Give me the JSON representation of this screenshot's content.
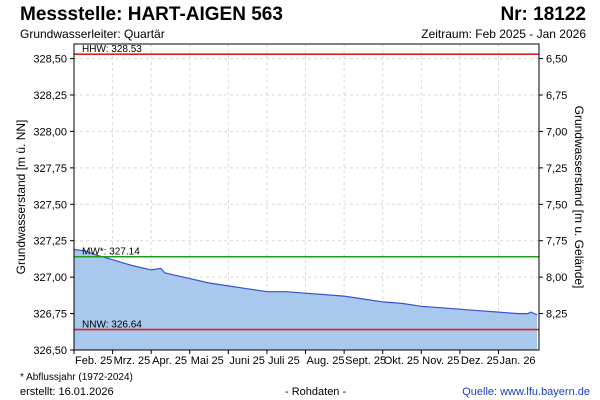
{
  "header": {
    "title": "Messstelle: HART-AIGEN 563",
    "number": "Nr: 18122",
    "aquifer": "Grundwasserleiter: Quartär",
    "period": "Zeitraum: Feb 2025 - Jan 2026"
  },
  "footer": {
    "footnote": "* Abflussjahr (1972-2024)",
    "created": "erstellt:  16.01.2026",
    "raw": "- Rohdaten -",
    "source": "Quelle:  www.lfu.bayern.de"
  },
  "colors": {
    "area_fill": "#a9c8ee",
    "line": "#3a52c9",
    "hhw": "#e02020",
    "nnw": "#e02020",
    "mw": "#1c9e1c"
  },
  "chart_data": {
    "type": "area",
    "ylabel": "Grundwasserstand [m ü. NN]",
    "y2label": "Grundwasserstand [m u. Gelände]",
    "ylim": [
      326.5,
      328.6
    ],
    "yticks": [
      326.5,
      326.75,
      327.0,
      327.25,
      327.5,
      327.75,
      328.0,
      328.25,
      328.5
    ],
    "ytick_labels": [
      "326,50",
      "326,75",
      "327,00",
      "327,25",
      "327,50",
      "327,75",
      "328,00",
      "328,25",
      "328,50"
    ],
    "y2_ticks": [
      8.25,
      8.0,
      7.75,
      7.5,
      7.25,
      7.0,
      6.75,
      6.5
    ],
    "y2_tick_labels": [
      "8,25",
      "8,00",
      "7,75",
      "7,50",
      "7,25",
      "7,00",
      "6,75",
      "6,50"
    ],
    "y2_offset": 335.0,
    "x_range": [
      0,
      12.05
    ],
    "month_labels": [
      "Feb. 25",
      "Mrz. 25",
      "Apr. 25",
      "Mai 25",
      "Juni 25",
      "Juli 25",
      "Aug. 25",
      "Sept. 25",
      "Okt. 25",
      "Nov. 25",
      "Dez. 25",
      "Jan. 26"
    ],
    "grid": true,
    "reference_lines": [
      {
        "label": "HHW: 328.53",
        "value": 328.53,
        "kind": "hhw"
      },
      {
        "label": "MW*: 327.14",
        "value": 327.14,
        "kind": "mw"
      },
      {
        "label": "NNW: 326.64",
        "value": 326.64,
        "kind": "nnw"
      }
    ],
    "series": [
      {
        "x": [
          0,
          0.3,
          0.6,
          1.0,
          1.5,
          2.0,
          2.25,
          2.35,
          2.5,
          3.0,
          3.5,
          4.0,
          4.5,
          5.0,
          5.5,
          6.0,
          6.5,
          7.0,
          7.5,
          8.0,
          8.5,
          9.0,
          9.5,
          10.0,
          10.5,
          11.0,
          11.5,
          11.75,
          11.85,
          12.0
        ],
        "y": [
          327.19,
          327.18,
          327.15,
          327.12,
          327.08,
          327.05,
          327.06,
          327.03,
          327.02,
          326.99,
          326.96,
          326.94,
          326.92,
          326.9,
          326.9,
          326.89,
          326.88,
          326.87,
          326.85,
          326.83,
          326.82,
          326.8,
          326.79,
          326.78,
          326.77,
          326.76,
          326.75,
          326.75,
          326.76,
          326.74
        ]
      }
    ]
  }
}
